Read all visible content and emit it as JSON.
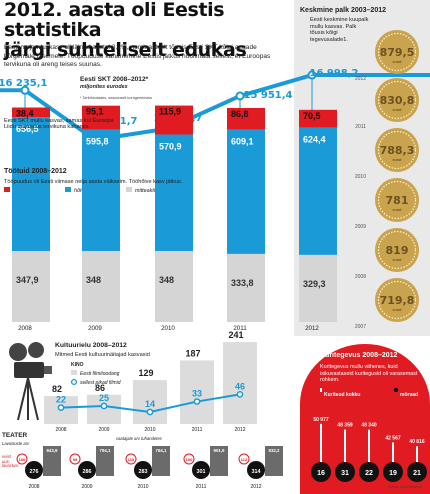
{
  "header": {
    "title_line1": "2012. aasta oli Eestis statistika",
    "title_line2": "järgi suhteliselt edukas",
    "intro": "Eesti majanduskasv oli läinud aastal 3,2%, nominaalselt tõusis Eesti SKT kõigi aegade kõrgemale tasemele. Tööpuuduse kahanemine Eestis jätkus hoolimata sellest, et Euroopas tervikuna oli areng teises suunas."
  },
  "gdp_section": {
    "title": "Eesti SKT 2008–2012*",
    "subtitle": "miljonites eurodes",
    "footnote": "* Tarbihindades, sesoonselt korrigeerimata",
    "note": "Eesti SKT mullu kasvas, samas kui Euroopa Liidu majandus tervikuna kahanes."
  },
  "unemployment_section": {
    "title": "Töötuid 2008–2012",
    "subtitle": "Tööpuudus oli Eesti viimase nelja aasta väikseim. Tööhõive kasv jätkus.",
    "legend": [
      "töötud",
      "hõivatud",
      "mitteaktiivsed"
    ]
  },
  "wages": {
    "title": "Keskmine palk 2003–2012",
    "note": "Eesti keskmine kuupalk mullu kasvas. Palk tõusis kõigi tegevusalade1.",
    "unit": "eurot"
  },
  "culture": {
    "title": "Kultuurielu 2008–2012",
    "subtitle": "Mitmed Eesti kultuurinäitajad kasvasid",
    "legend_kino": "KINO",
    "legend_a": "Eesti filmitoodang",
    "legend_b": "sellest pikad filmid"
  },
  "crime": {
    "title": "Kuritegevus 2008–2012",
    "note": "Kuritegevus mullu vähenes, kuid isikuvastaseid kuritegusid oli varasemast rohkem.",
    "legend_a": "Kuriteod kokku",
    "legend_b": "mõrvad",
    "source": "Allikas: statistikaamet"
  },
  "theatre": {
    "heading": "TEATER",
    "col_a": "Lavastuste arv",
    "col_b": "vaatajate arv tuhandetes",
    "col_c": "neist uus-lavastusi"
  },
  "colors": {
    "blue": "#1a9ad6",
    "red": "#e11b22",
    "grey": "#d5d5d5",
    "gold": "#c9a34e",
    "dark": "#222222"
  },
  "chart_data": [
    {
      "type": "line",
      "title": "Eesti SKT 2008–2012*",
      "ylabel": "miljonites eurodes",
      "x": [
        "2008",
        "2009",
        "2010",
        "2011",
        "2012"
      ],
      "series": [
        {
          "values": [
            16235.1,
            13761.7,
            14322.7,
            15951.4,
            16998.2
          ]
        }
      ],
      "labels": [
        "16 235,1",
        "13 761,7",
        "14 322,7",
        "15 951,4",
        "16 998,2"
      ]
    },
    {
      "type": "bar",
      "title": "Töötuid 2008–2012",
      "categories": [
        "2008",
        "2009",
        "2010",
        "2011",
        "2012"
      ],
      "series": [
        {
          "name": "töötud",
          "values": [
            38.4,
            95.1,
            115.9,
            86.8,
            70.5
          ],
          "labels": [
            "38,4",
            "95,1",
            "115,9",
            "86,8",
            "70,5"
          ]
        },
        {
          "name": "hõivatud",
          "values": [
            656.5,
            595.8,
            570.9,
            609.1,
            624.4
          ],
          "labels": [
            "656,5",
            "595,8",
            "570,9",
            "609,1",
            "624,4"
          ]
        },
        {
          "name": "mitteaktiivsed",
          "values": [
            347.9,
            348,
            348,
            333.8,
            329.3
          ],
          "labels": [
            "347,9",
            "348",
            "348",
            "333,8",
            "329,3"
          ]
        }
      ]
    },
    {
      "type": "bar",
      "title": "Keskmine palk 2003–2012",
      "categories": [
        "2012",
        "2011",
        "2010",
        "2009",
        "2008",
        "2007"
      ],
      "values": [
        879.5,
        830.8,
        788.3,
        781,
        819,
        719.8
      ],
      "labels": [
        "879,5",
        "830,8",
        "788,3",
        "781",
        "819",
        "719,8"
      ]
    },
    {
      "type": "bar",
      "title": "Kultuurielu 2008–2012",
      "categories": [
        "2008",
        "2009",
        "2010",
        "2011",
        "2012"
      ],
      "series": [
        {
          "name": "Eesti filmitoodang",
          "values": [
            82,
            86,
            129,
            187,
            241
          ]
        },
        {
          "name": "sellest pikad filmid",
          "values": [
            22,
            25,
            14,
            33,
            46
          ]
        }
      ]
    },
    {
      "type": "bar",
      "title": "Kuritegevus 2008–2012",
      "categories": [
        "2008",
        "2009",
        "2010",
        "2011",
        "2012"
      ],
      "series": [
        {
          "name": "Kuriteod kokku",
          "values": [
            50977,
            48359,
            48340,
            42567,
            40816
          ],
          "labels": [
            "50 977",
            "48 359",
            "48 340",
            "42 567",
            "40 816"
          ]
        },
        {
          "name": "mõrvad",
          "values": [
            16,
            31,
            22,
            19,
            21
          ]
        }
      ]
    },
    {
      "type": "table",
      "title": "TEATER",
      "categories": [
        "2008",
        "2009",
        "2010",
        "2011",
        "2012"
      ],
      "series": [
        {
          "name": "Lavastuste arv",
          "values": [
            276,
            286,
            283,
            301,
            314
          ]
        },
        {
          "name": "neist uuslavastusi",
          "values": [
            100,
            99,
            115,
            100,
            112
          ]
        },
        {
          "name": "vaatajate arv tuhandetes",
          "values": [
            843.9,
            794.1,
            764.1,
            901.9,
            932.2
          ],
          "labels": [
            "843,9",
            "794,1",
            "764,1",
            "901,9",
            "932,2"
          ]
        }
      ]
    }
  ]
}
